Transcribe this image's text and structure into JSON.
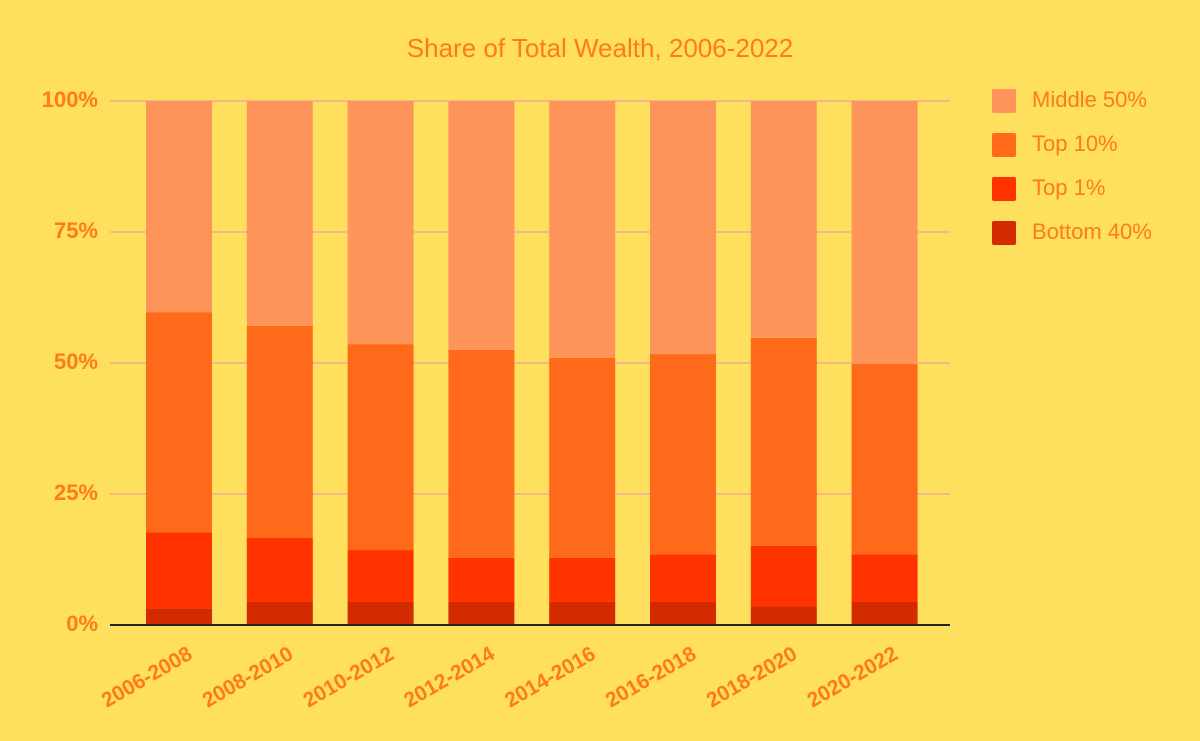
{
  "chart_data": {
    "type": "stacked_bar",
    "title": "Share of Total Wealth, 2006-2022",
    "categories": [
      "2006-2008",
      "2008-2010",
      "2010-2012",
      "2012-2014",
      "2014-2016",
      "2016-2018",
      "2018-2020",
      "2020-2022"
    ],
    "series": [
      {
        "name": "Bottom 40%",
        "color": "#d42a00",
        "values": [
          3.2,
          4.4,
          4.4,
          4.4,
          4.4,
          4.4,
          3.6,
          4.4
        ]
      },
      {
        "name": "Top 1%",
        "color": "#ff3300",
        "values": [
          14.5,
          12.2,
          9.9,
          8.4,
          8.4,
          9.1,
          11.5,
          9.1
        ]
      },
      {
        "name": "Top 10%",
        "color": "#ff6a1a",
        "values": [
          42.0,
          40.5,
          39.3,
          39.7,
          38.2,
          38.2,
          39.7,
          36.3
        ]
      },
      {
        "name": "Middle 50%",
        "color": "#ff945a",
        "values": [
          40.3,
          42.9,
          46.4,
          47.5,
          49.0,
          48.3,
          45.2,
          50.2
        ]
      }
    ],
    "ylim": [
      0,
      100
    ],
    "yticks": [
      {
        "value": 0,
        "label": "0%"
      },
      {
        "value": 25,
        "label": "25%"
      },
      {
        "value": 50,
        "label": "50%"
      },
      {
        "value": 75,
        "label": "75%"
      },
      {
        "value": 100,
        "label": "100%"
      }
    ],
    "grid": true,
    "legend": "right"
  }
}
